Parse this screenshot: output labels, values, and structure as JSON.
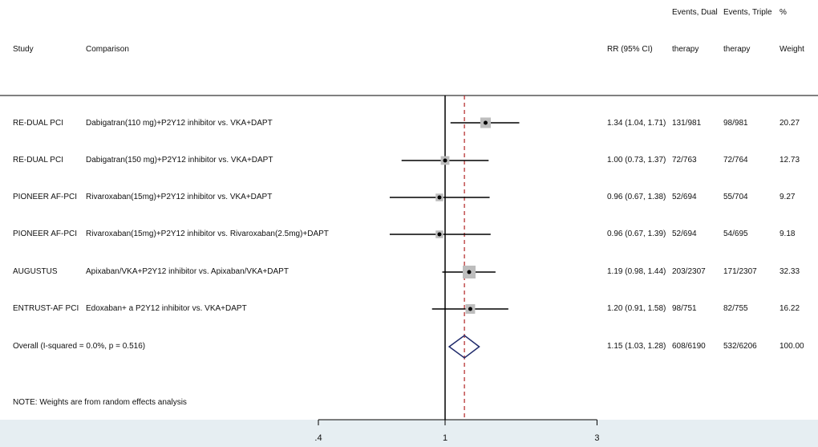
{
  "header": {
    "study": "Study",
    "comparison": "Comparison",
    "rr": "RR (95% CI)",
    "events_dual_line1": "Events, Dual",
    "events_dual_line2": "therapy",
    "events_triple_line1": "Events, Triple",
    "events_triple_line2": "therapy",
    "weight_line1": "%",
    "weight_line2": "Weight"
  },
  "rows": [
    {
      "study": "RE-DUAL PCI",
      "comparison": "Dabigatran(110 mg)+P2Y12 inhibitor vs. VKA+DAPT",
      "rr_text": "1.34 (1.04, 1.71)",
      "dual": "131/981",
      "triple": "98/981",
      "weight": "20.27"
    },
    {
      "study": "RE-DUAL PCI",
      "comparison": "Dabigatran(150 mg)+P2Y12 inhibitor vs. VKA+DAPT",
      "rr_text": "1.00 (0.73, 1.37)",
      "dual": "72/763",
      "triple": "72/764",
      "weight": "12.73"
    },
    {
      "study": "PIONEER AF-PCI",
      "comparison": "Rivaroxaban(15mg)+P2Y12 inhibitor vs. VKA+DAPT",
      "rr_text": "0.96 (0.67, 1.38)",
      "dual": "52/694",
      "triple": "55/704",
      "weight": "9.27"
    },
    {
      "study": "PIONEER AF-PCI",
      "comparison": "Rivaroxaban(15mg)+P2Y12 inhibitor vs. Rivaroxaban(2.5mg)+DAPT",
      "rr_text": "0.96 (0.67, 1.39)",
      "dual": "52/694",
      "triple": "54/695",
      "weight": "9.18"
    },
    {
      "study": "AUGUSTUS",
      "comparison": "Apixaban/VKA+P2Y12 inhibitor vs. Apixaban/VKA+DAPT",
      "rr_text": "1.19 (0.98, 1.44)",
      "dual": "203/2307",
      "triple": "171/2307",
      "weight": "32.33"
    },
    {
      "study": "ENTRUST-AF PCI",
      "comparison": "Edoxaban+ a P2Y12 inhibitor vs. VKA+DAPT",
      "rr_text": "1.20 (0.91, 1.58)",
      "dual": "98/751",
      "triple": "82/755",
      "weight": "16.22"
    }
  ],
  "overall": {
    "label": "Overall  (I-squared = 0.0%, p = 0.516)",
    "rr_text": "1.15 (1.03, 1.28)",
    "dual": "608/6190",
    "triple": "532/6206",
    "weight": "100.00"
  },
  "note": "NOTE: Weights are from random effects analysis",
  "colors": {
    "box": "#bdbdbd",
    "line": "#000000",
    "diamond": "#1f2a6b",
    "overall_line": "#b22222",
    "background_band": "#e6eef2"
  },
  "chart_data": {
    "type": "forest",
    "scale": "log",
    "xlim": [
      0.4,
      3
    ],
    "x_ticks": [
      ".4",
      "1",
      "3"
    ],
    "x_tick_values": [
      0.4,
      1,
      3
    ],
    "reference_line": 1,
    "overall_line": 1.15,
    "estimates": [
      {
        "rr": 1.34,
        "lo": 1.04,
        "hi": 1.71,
        "weight": 20.27
      },
      {
        "rr": 1.0,
        "lo": 0.73,
        "hi": 1.37,
        "weight": 12.73
      },
      {
        "rr": 0.96,
        "lo": 0.67,
        "hi": 1.38,
        "weight": 9.27
      },
      {
        "rr": 0.96,
        "lo": 0.67,
        "hi": 1.39,
        "weight": 9.18
      },
      {
        "rr": 1.19,
        "lo": 0.98,
        "hi": 1.44,
        "weight": 32.33
      },
      {
        "rr": 1.2,
        "lo": 0.91,
        "hi": 1.58,
        "weight": 16.22
      }
    ],
    "overall": {
      "rr": 1.15,
      "lo": 1.03,
      "hi": 1.28
    }
  }
}
